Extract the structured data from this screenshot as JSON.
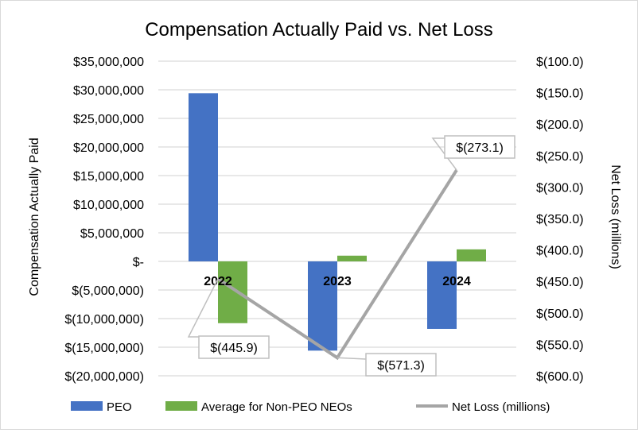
{
  "chart_data": {
    "type": "bar+line",
    "title": "Compensation Actually Paid vs. Net Loss",
    "ylabel": "Compensation Actually Paid",
    "y2label": "Net Loss (millions)",
    "categories": [
      "2022",
      "2023",
      "2024"
    ],
    "ylim": [
      -20000000,
      35000000
    ],
    "y2lim": [
      -600,
      -100
    ],
    "yticks": [
      "$(20,000,000)",
      "$(15,000,000)",
      "$(10,000,000)",
      "$(5,000,000)",
      "$-",
      "$5,000,000",
      "$10,000,000",
      "$15,000,000",
      "$20,000,000",
      "$25,000,000",
      "$30,000,000",
      "$35,000,000"
    ],
    "y2ticks": [
      "$(600.0)",
      "$(550.0)",
      "$(500.0)",
      "$(450.0)",
      "$(400.0)",
      "$(350.0)",
      "$(300.0)",
      "$(250.0)",
      "$(200.0)",
      "$(150.0)",
      "$(100.0)"
    ],
    "grid": true,
    "legend_position": "bottom",
    "series": [
      {
        "name": "PEO",
        "type": "bar",
        "axis": "left",
        "color": "#4472c4",
        "values": [
          29400000,
          -15600000,
          -11800000
        ]
      },
      {
        "name": "Average for Non-PEO NEOs",
        "type": "bar",
        "axis": "left",
        "color": "#70ad47",
        "values": [
          -10800000,
          1000000,
          2100000
        ]
      },
      {
        "name": "Net Loss (millions)",
        "type": "line",
        "axis": "right",
        "color": "#a5a5a5",
        "values": [
          -445.9,
          -571.3,
          -273.1
        ],
        "labels": [
          "$(445.9)",
          "$(571.3)",
          "$(273.1)"
        ]
      }
    ]
  }
}
